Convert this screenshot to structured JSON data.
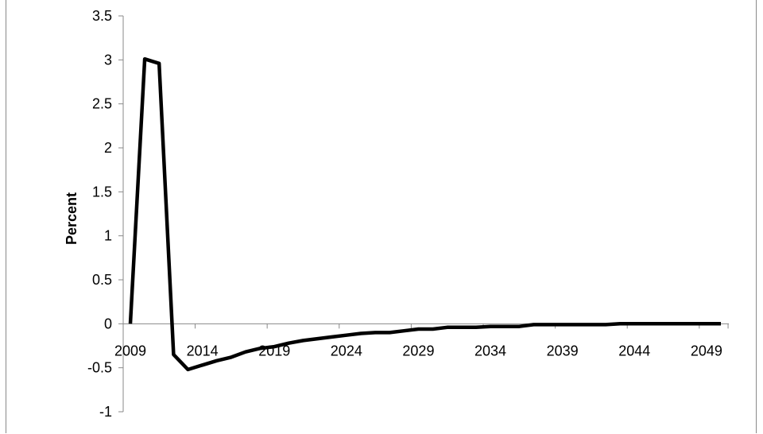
{
  "chart_data": {
    "type": "line",
    "title": "",
    "xlabel": "",
    "ylabel": "Percent",
    "x": [
      2009,
      2010,
      2011,
      2012,
      2013,
      2014,
      2015,
      2016,
      2017,
      2018,
      2019,
      2020,
      2021,
      2022,
      2023,
      2024,
      2025,
      2026,
      2027,
      2028,
      2029,
      2030,
      2031,
      2032,
      2033,
      2034,
      2035,
      2036,
      2037,
      2038,
      2039,
      2040,
      2041,
      2042,
      2043,
      2044,
      2045,
      2046,
      2047,
      2048,
      2049,
      2050
    ],
    "series": [
      {
        "name": "",
        "color": "#000000",
        "values": [
          0,
          3.01,
          2.96,
          -0.35,
          -0.52,
          -0.47,
          -0.42,
          -0.38,
          -0.32,
          -0.28,
          -0.26,
          -0.22,
          -0.19,
          -0.17,
          -0.15,
          -0.13,
          -0.11,
          -0.1,
          -0.1,
          -0.08,
          -0.06,
          -0.06,
          -0.04,
          -0.04,
          -0.04,
          -0.03,
          -0.03,
          -0.03,
          -0.01,
          -0.01,
          -0.01,
          -0.01,
          -0.01,
          -0.01,
          0,
          0,
          0,
          0,
          0,
          0,
          0,
          0
        ]
      }
    ],
    "xticks": [
      "2009",
      "2014",
      "2019",
      "2024",
      "2029",
      "2034",
      "2039",
      "2044",
      "2049"
    ],
    "yticks": [
      "3.5",
      "3",
      "2.5",
      "2",
      "1.5",
      "1",
      "0.5",
      "0",
      "-0.5",
      "-1"
    ],
    "ylim": [
      -1,
      3.5
    ],
    "xlim": [
      2009,
      2050
    ],
    "grid": false,
    "legend": "none"
  }
}
